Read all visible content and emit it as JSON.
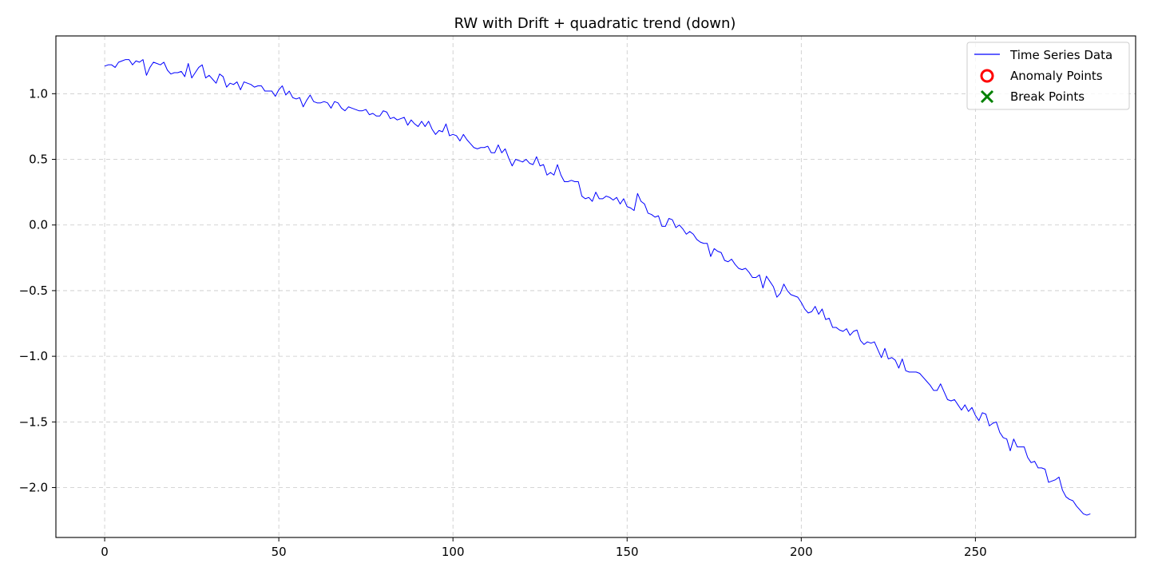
{
  "chart_data": {
    "type": "line",
    "title": "RW with Drift + quadratic trend (down)",
    "xlabel": "",
    "ylabel": "",
    "xlim": [
      -14,
      296
    ],
    "ylim": [
      -2.38,
      1.44
    ],
    "x_ticks": [
      0,
      50,
      100,
      150,
      200,
      250
    ],
    "y_ticks": [
      1.0,
      0.5,
      0.0,
      -0.5,
      -1.0,
      -1.5,
      -2.0
    ],
    "x_tick_labels": [
      "0",
      "50",
      "100",
      "150",
      "200",
      "250"
    ],
    "y_tick_labels": [
      "1.0",
      "0.5",
      "0.0",
      "−0.5",
      "−1.0",
      "−1.5",
      "−2.0"
    ],
    "grid": true,
    "legend_position": "top-right",
    "legend": [
      {
        "label": "Time Series Data",
        "marker": "line",
        "color": "#0000ff"
      },
      {
        "label": "Anomaly Points",
        "marker": "circle-open",
        "color": "#ff0000"
      },
      {
        "label": "Break Points",
        "marker": "x",
        "color": "#008000"
      }
    ],
    "series": [
      {
        "name": "Time Series Data",
        "color": "#0000ff",
        "x_start": 0,
        "x_step": 1,
        "values": [
          1.21,
          1.22,
          1.22,
          1.2,
          1.24,
          1.25,
          1.26,
          1.26,
          1.22,
          1.25,
          1.24,
          1.26,
          1.14,
          1.2,
          1.24,
          1.23,
          1.22,
          1.24,
          1.18,
          1.15,
          1.16,
          1.16,
          1.17,
          1.13,
          1.23,
          1.12,
          1.16,
          1.2,
          1.22,
          1.12,
          1.14,
          1.11,
          1.08,
          1.15,
          1.13,
          1.05,
          1.08,
          1.07,
          1.09,
          1.03,
          1.09,
          1.08,
          1.07,
          1.05,
          1.06,
          1.06,
          1.02,
          1.02,
          1.02,
          0.98,
          1.03,
          1.06,
          0.99,
          1.02,
          0.97,
          0.96,
          0.97,
          0.9,
          0.95,
          0.99,
          0.94,
          0.93,
          0.93,
          0.94,
          0.93,
          0.89,
          0.94,
          0.93,
          0.89,
          0.87,
          0.9,
          0.89,
          0.88,
          0.87,
          0.87,
          0.88,
          0.84,
          0.85,
          0.83,
          0.83,
          0.87,
          0.86,
          0.81,
          0.82,
          0.8,
          0.81,
          0.82,
          0.76,
          0.8,
          0.77,
          0.75,
          0.79,
          0.75,
          0.79,
          0.73,
          0.69,
          0.72,
          0.71,
          0.77,
          0.68,
          0.69,
          0.68,
          0.64,
          0.69,
          0.65,
          0.62,
          0.59,
          0.58,
          0.59,
          0.59,
          0.6,
          0.55,
          0.55,
          0.61,
          0.55,
          0.58,
          0.51,
          0.45,
          0.5,
          0.49,
          0.48,
          0.5,
          0.47,
          0.46,
          0.52,
          0.45,
          0.46,
          0.38,
          0.4,
          0.38,
          0.46,
          0.38,
          0.33,
          0.33,
          0.34,
          0.33,
          0.33,
          0.22,
          0.2,
          0.21,
          0.18,
          0.25,
          0.2,
          0.2,
          0.22,
          0.21,
          0.19,
          0.21,
          0.16,
          0.2,
          0.14,
          0.13,
          0.11,
          0.24,
          0.18,
          0.16,
          0.09,
          0.08,
          0.06,
          0.07,
          -0.01,
          -0.01,
          0.05,
          0.04,
          -0.02,
          0.0,
          -0.03,
          -0.07,
          -0.05,
          -0.07,
          -0.11,
          -0.13,
          -0.14,
          -0.14,
          -0.24,
          -0.18,
          -0.2,
          -0.21,
          -0.27,
          -0.28,
          -0.26,
          -0.3,
          -0.33,
          -0.34,
          -0.33,
          -0.36,
          -0.4,
          -0.4,
          -0.38,
          -0.48,
          -0.39,
          -0.43,
          -0.47,
          -0.55,
          -0.52,
          -0.45,
          -0.5,
          -0.53,
          -0.54,
          -0.55,
          -0.59,
          -0.64,
          -0.67,
          -0.66,
          -0.62,
          -0.68,
          -0.64,
          -0.72,
          -0.71,
          -0.78,
          -0.78,
          -0.8,
          -0.81,
          -0.79,
          -0.84,
          -0.81,
          -0.8,
          -0.88,
          -0.91,
          -0.89,
          -0.9,
          -0.89,
          -0.95,
          -1.01,
          -0.94,
          -1.02,
          -1.01,
          -1.03,
          -1.09,
          -1.02,
          -1.11,
          -1.12,
          -1.12,
          -1.12,
          -1.13,
          -1.16,
          -1.19,
          -1.22,
          -1.26,
          -1.26,
          -1.21,
          -1.27,
          -1.33,
          -1.34,
          -1.33,
          -1.37,
          -1.41,
          -1.37,
          -1.42,
          -1.39,
          -1.45,
          -1.49,
          -1.43,
          -1.44,
          -1.53,
          -1.51,
          -1.5,
          -1.58,
          -1.62,
          -1.63,
          -1.72,
          -1.63,
          -1.69,
          -1.69,
          -1.69,
          -1.77,
          -1.81,
          -1.8,
          -1.85,
          -1.85,
          -1.86,
          -1.96,
          -1.95,
          -1.94,
          -1.92,
          -2.02,
          -2.07,
          -2.09,
          -2.1,
          -2.14,
          -2.17,
          -2.2,
          -2.21,
          -2.2
        ]
      }
    ],
    "anomaly_points": [],
    "break_points": []
  }
}
